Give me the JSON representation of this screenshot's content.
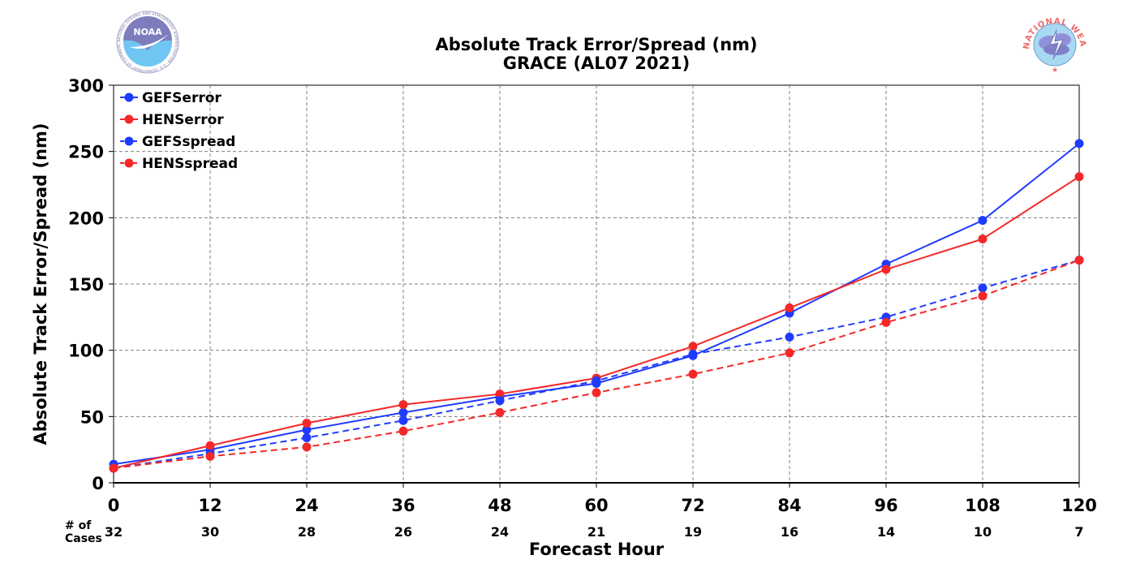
{
  "logos": {
    "noaa_text": "NOAA",
    "noaa_ring_text": "NATIONAL OCEANIC AND ATMOSPHERIC ADMINISTRATION · U.S. DEPARTMENT OF COMMERCE",
    "nws_ring_text": "NATIONAL WEATHER SERVICE"
  },
  "chart_data": {
    "type": "line",
    "title": "Absolute Track Error/Spread (nm)",
    "subtitle": "GRACE (AL07 2021)",
    "xlabel": "Forecast Hour",
    "ylabel": "Absolute Track Error/Spread (nm)",
    "x": [
      0,
      12,
      24,
      36,
      48,
      60,
      72,
      84,
      96,
      108,
      120
    ],
    "xlim": [
      0,
      120
    ],
    "ylim": [
      0,
      300
    ],
    "yticks": [
      0,
      50,
      100,
      150,
      200,
      250,
      300
    ],
    "grid": true,
    "legend_position": "top-left",
    "cases_label_line1": "# of",
    "cases_label_line2": "Cases",
    "cases": [
      32,
      30,
      28,
      26,
      24,
      21,
      19,
      16,
      14,
      10,
      7
    ],
    "series": [
      {
        "name": "GEFSerror",
        "color": "#1f3bff",
        "dashed": false,
        "values": [
          14,
          25,
          40,
          53,
          65,
          75,
          96,
          128,
          165,
          198,
          256
        ]
      },
      {
        "name": "HENSerror",
        "color": "#f42828",
        "dashed": false,
        "values": [
          11,
          28,
          45,
          59,
          67,
          79,
          103,
          132,
          161,
          184,
          231
        ]
      },
      {
        "name": "GEFSspread",
        "color": "#1f3bff",
        "dashed": true,
        "values": [
          11,
          22,
          34,
          47,
          62,
          77,
          97,
          110,
          125,
          147,
          168
        ]
      },
      {
        "name": "HENSspread",
        "color": "#f42828",
        "dashed": true,
        "values": [
          11,
          20,
          27,
          39,
          53,
          68,
          82,
          98,
          121,
          141,
          168
        ]
      }
    ]
  }
}
